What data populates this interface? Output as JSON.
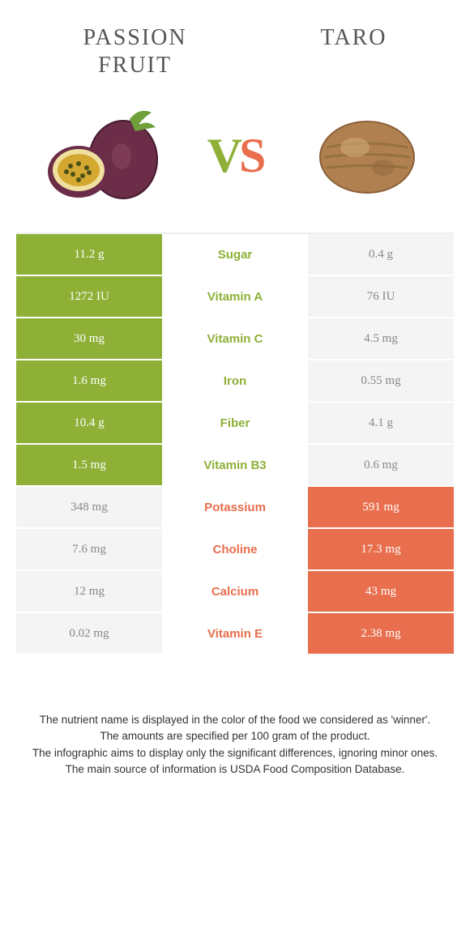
{
  "colors": {
    "left": "#8eb037",
    "right": "#e86e4d",
    "left_faded": "#f4f4f4",
    "right_faded": "#f4f4f4",
    "vs_v": "#8eb037",
    "vs_s": "#e86e4d"
  },
  "food1": {
    "title": "PASSION\nFRUIT"
  },
  "food2": {
    "title": "TARO"
  },
  "vs": {
    "v": "V",
    "s": "S"
  },
  "rows": [
    {
      "left": "11.2 g",
      "label": "Sugar",
      "right": "0.4 g",
      "winner": "left"
    },
    {
      "left": "1272 IU",
      "label": "Vitamin A",
      "right": "76 IU",
      "winner": "left"
    },
    {
      "left": "30 mg",
      "label": "Vitamin C",
      "right": "4.5 mg",
      "winner": "left"
    },
    {
      "left": "1.6 mg",
      "label": "Iron",
      "right": "0.55 mg",
      "winner": "left"
    },
    {
      "left": "10.4 g",
      "label": "Fiber",
      "right": "4.1 g",
      "winner": "left"
    },
    {
      "left": "1.5 mg",
      "label": "Vitamin B3",
      "right": "0.6 mg",
      "winner": "left"
    },
    {
      "left": "348 mg",
      "label": "Potassium",
      "right": "591 mg",
      "winner": "right"
    },
    {
      "left": "7.6 mg",
      "label": "Choline",
      "right": "17.3 mg",
      "winner": "right"
    },
    {
      "left": "12 mg",
      "label": "Calcium",
      "right": "43 mg",
      "winner": "right"
    },
    {
      "left": "0.02 mg",
      "label": "Vitamin E",
      "right": "2.38 mg",
      "winner": "right"
    }
  ],
  "footer": {
    "line1": "The nutrient name is displayed in the color of the food we considered as 'winner'.",
    "line2": "The amounts are specified per 100 gram of the product.",
    "line3": "The infographic aims to display only the significant differences, ignoring minor ones.",
    "line4": "The main source of information is USDA Food Composition Database."
  }
}
